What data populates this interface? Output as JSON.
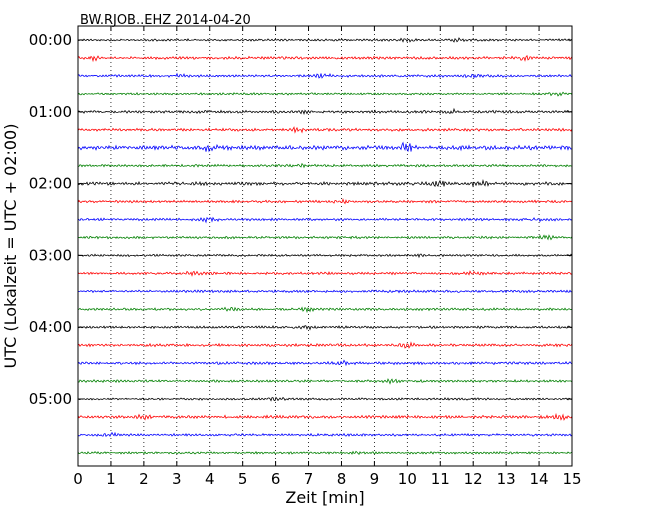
{
  "chart_data": {
    "type": "line",
    "subtype": "helicorder",
    "title": "BW.RJOB..EHZ 2014-04-20",
    "xlabel": "Zeit  [min]",
    "ylabel": "UTC (Lokalzeit = UTC + 02:00)",
    "xlim": [
      0,
      15
    ],
    "x_ticks": [
      "0",
      "1",
      "2",
      "3",
      "4",
      "5",
      "6",
      "7",
      "8",
      "9",
      "10",
      "11",
      "12",
      "13",
      "14",
      "15"
    ],
    "y_ticks": [
      "00:00",
      "01:00",
      "02:00",
      "03:00",
      "04:00",
      "05:00"
    ],
    "grid": "vertical-dotted",
    "trace_interval_min": 15,
    "trace_colors": [
      "#000000",
      "#ff0000",
      "#0000ff",
      "#008000"
    ],
    "traces": [
      {
        "start": "00:00",
        "amplitude": 0.8,
        "events": [
          {
            "x": 10.0,
            "amp": 1.2
          },
          {
            "x": 11.5,
            "amp": 1.3
          }
        ]
      },
      {
        "start": "00:15",
        "amplitude": 1.0,
        "events": [
          {
            "x": 0.5,
            "amp": 1.3
          },
          {
            "x": 13.5,
            "amp": 1.3
          }
        ]
      },
      {
        "start": "00:30",
        "amplitude": 0.9,
        "events": [
          {
            "x": 3.1,
            "amp": 1.2
          },
          {
            "x": 7.5,
            "amp": 1.6
          },
          {
            "x": 12.0,
            "amp": 1.2
          }
        ]
      },
      {
        "start": "00:45",
        "amplitude": 0.8,
        "events": [
          {
            "x": 14.5,
            "amp": 1.2
          }
        ]
      },
      {
        "start": "01:00",
        "amplitude": 1.0,
        "events": [
          {
            "x": 11.5,
            "amp": 1.4
          },
          {
            "x": 6.8,
            "amp": 1.2
          }
        ]
      },
      {
        "start": "01:15",
        "amplitude": 1.0,
        "events": [
          {
            "x": 6.7,
            "amp": 1.4
          }
        ]
      },
      {
        "start": "01:30",
        "amplitude": 1.6,
        "events": [
          {
            "x": 4.0,
            "amp": 1.8
          },
          {
            "x": 10.0,
            "amp": 1.9
          }
        ]
      },
      {
        "start": "01:45",
        "amplitude": 0.9,
        "events": [
          {
            "x": 6.7,
            "amp": 1.3
          }
        ]
      },
      {
        "start": "02:00",
        "amplitude": 1.2,
        "events": [
          {
            "x": 11.0,
            "amp": 1.5
          },
          {
            "x": 12.2,
            "amp": 1.6
          }
        ]
      },
      {
        "start": "02:15",
        "amplitude": 0.9,
        "events": [
          {
            "x": 8.0,
            "amp": 1.2
          }
        ]
      },
      {
        "start": "02:30",
        "amplitude": 0.9,
        "events": [
          {
            "x": 4.0,
            "amp": 1.8
          },
          {
            "x": 14.0,
            "amp": 1.2
          }
        ]
      },
      {
        "start": "02:45",
        "amplitude": 0.9,
        "events": [
          {
            "x": 14.2,
            "amp": 1.7
          }
        ]
      },
      {
        "start": "03:00",
        "amplitude": 0.8,
        "events": [
          {
            "x": 10.5,
            "amp": 1.2
          }
        ]
      },
      {
        "start": "03:15",
        "amplitude": 0.9,
        "events": [
          {
            "x": 3.5,
            "amp": 1.2
          },
          {
            "x": 12.0,
            "amp": 1.2
          }
        ]
      },
      {
        "start": "03:30",
        "amplitude": 0.9,
        "events": [
          {
            "x": 9.5,
            "amp": 1.2
          }
        ]
      },
      {
        "start": "03:45",
        "amplitude": 0.9,
        "events": [
          {
            "x": 4.6,
            "amp": 1.2
          },
          {
            "x": 7.0,
            "amp": 1.3
          }
        ]
      },
      {
        "start": "04:00",
        "amplitude": 0.9,
        "events": [
          {
            "x": 7.0,
            "amp": 1.3
          }
        ]
      },
      {
        "start": "04:15",
        "amplitude": 1.0,
        "events": [
          {
            "x": 10.0,
            "amp": 1.5
          }
        ]
      },
      {
        "start": "04:30",
        "amplitude": 1.0,
        "events": [
          {
            "x": 8.0,
            "amp": 1.2
          }
        ]
      },
      {
        "start": "04:45",
        "amplitude": 0.9,
        "events": [
          {
            "x": 9.5,
            "amp": 1.2
          }
        ]
      },
      {
        "start": "05:00",
        "amplitude": 0.8,
        "events": [
          {
            "x": 6.0,
            "amp": 1.2
          }
        ]
      },
      {
        "start": "05:15",
        "amplitude": 1.1,
        "events": [
          {
            "x": 2.0,
            "amp": 1.3
          },
          {
            "x": 14.7,
            "amp": 1.6
          }
        ]
      },
      {
        "start": "05:30",
        "amplitude": 0.9,
        "events": [
          {
            "x": 1.0,
            "amp": 1.2
          }
        ]
      },
      {
        "start": "05:45",
        "amplitude": 0.8,
        "events": [
          {
            "x": 8.5,
            "amp": 1.2
          }
        ]
      }
    ]
  }
}
